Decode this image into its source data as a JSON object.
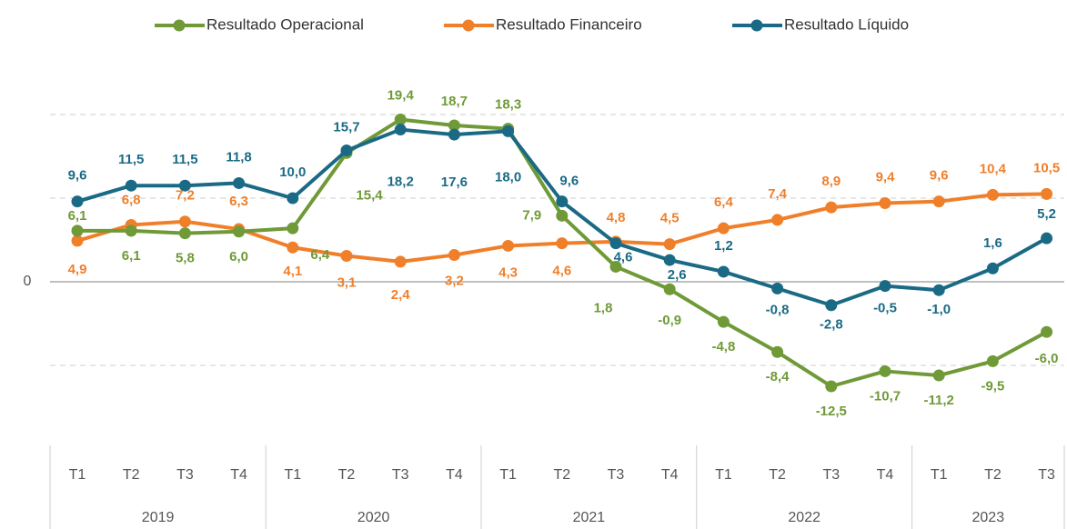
{
  "chart_data": {
    "type": "line",
    "categories": [
      "T1",
      "T2",
      "T3",
      "T4",
      "T1",
      "T2",
      "T3",
      "T4",
      "T1",
      "T2",
      "T3",
      "T4",
      "T1",
      "T2",
      "T3",
      "T4",
      "T1",
      "T2",
      "T3"
    ],
    "category_groups": [
      "2019",
      "2020",
      "2021",
      "2022",
      "2023"
    ],
    "ylim": [
      -20,
      25
    ],
    "yticks": [
      0
    ],
    "grid_lines": [
      -10,
      10,
      20
    ],
    "legend": "top",
    "series": [
      {
        "name": "Resultado Operacional",
        "color": "#6f9a37",
        "values": [
          6.1,
          6.1,
          5.8,
          6.0,
          6.4,
          15.4,
          19.4,
          18.7,
          18.3,
          7.9,
          1.8,
          -0.9,
          -4.8,
          -8.4,
          -12.5,
          -10.7,
          -11.2,
          -9.5,
          -6.0
        ],
        "value_labels": [
          "6,1",
          "6,1",
          "5,8",
          "6,0",
          "6,4",
          "15,4",
          "19,4",
          "18,7",
          "18,3",
          "7,9",
          "1,8",
          "-0,9",
          "-4,8",
          "-8,4",
          "-12,5",
          "-10,7",
          "-11,2",
          "-9,5",
          "-6,0"
        ]
      },
      {
        "name": "Resultado Financeiro",
        "color": "#f07f2a",
        "values": [
          4.9,
          6.8,
          7.2,
          6.3,
          4.1,
          3.1,
          2.4,
          3.2,
          4.3,
          4.6,
          4.8,
          4.5,
          6.4,
          7.4,
          8.9,
          9.4,
          9.6,
          10.4,
          10.5
        ],
        "value_labels": [
          "4,9",
          "6,8",
          "7,2",
          "6,3",
          "4,1",
          "3,1",
          "2,4",
          "3,2",
          "4,3",
          "4,6",
          "4,8",
          "4,5",
          "6,4",
          "7,4",
          "8,9",
          "9,4",
          "9,6",
          "10,4",
          "10,5"
        ]
      },
      {
        "name": "Resultado Líquido",
        "color": "#1a6a85",
        "values": [
          9.6,
          11.5,
          11.5,
          11.8,
          10.0,
          15.7,
          18.2,
          17.6,
          18.0,
          9.6,
          4.6,
          2.6,
          1.2,
          -0.8,
          -2.8,
          -0.5,
          -1.0,
          1.6,
          5.2
        ],
        "value_labels": [
          "9,6",
          "11,5",
          "11,5",
          "11,8",
          "10,0",
          "15,7",
          "18,2",
          "17,6",
          "18,0",
          "9,6",
          "4,6",
          "2,6",
          "1,2",
          "-0,8",
          "-2,8",
          "-0,5",
          "-1,0",
          "1,6",
          "5,2"
        ]
      }
    ]
  }
}
